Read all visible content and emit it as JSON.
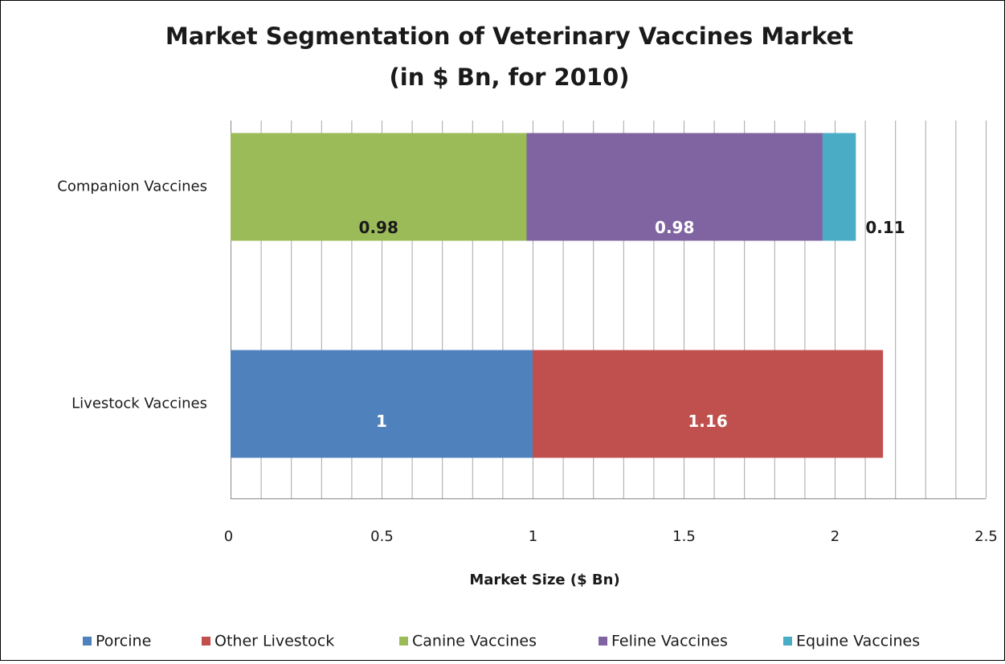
{
  "chart_data": {
    "type": "stacked_barh",
    "title": "Market Segmentation of Veterinary Vaccines Market",
    "subtitle": "(in $ Bn, for 2010)",
    "x_label": "Market Size ($ Bn)",
    "categories": [
      "Companion Vaccines",
      "Livestock Vaccines"
    ],
    "series": [
      {
        "name": "Porcine",
        "color": "#4f81bd",
        "label_color": "#ffffff",
        "values": [
          null,
          1
        ]
      },
      {
        "name": "Other Livestock",
        "color": "#c0504d",
        "label_color": "#ffffff",
        "values": [
          null,
          1.16
        ]
      },
      {
        "name": "Canine Vaccines",
        "color": "#9bbb59",
        "label_color": "#1a1a1a",
        "values": [
          0.98,
          null
        ]
      },
      {
        "name": "Feline Vaccines",
        "color": "#8064a2",
        "label_color": "#ffffff",
        "values": [
          0.98,
          null
        ]
      },
      {
        "name": "Equine Vaccines",
        "color": "#4bacc6",
        "label_color": "#1a1a1a",
        "values": [
          0.11,
          null
        ]
      }
    ],
    "xlim": [
      0,
      2.5
    ],
    "xticks": [
      0,
      0.5,
      1,
      1.5,
      2,
      2.5
    ],
    "xminorticks": [
      0.1,
      0.2,
      0.3,
      0.4,
      0.6,
      0.7,
      0.8,
      0.9,
      1.1,
      1.2,
      1.3,
      1.4,
      1.6,
      1.7,
      1.8,
      1.9,
      2.1,
      2.2,
      2.3,
      2.4
    ],
    "grid": true,
    "legend": "bottom"
  }
}
